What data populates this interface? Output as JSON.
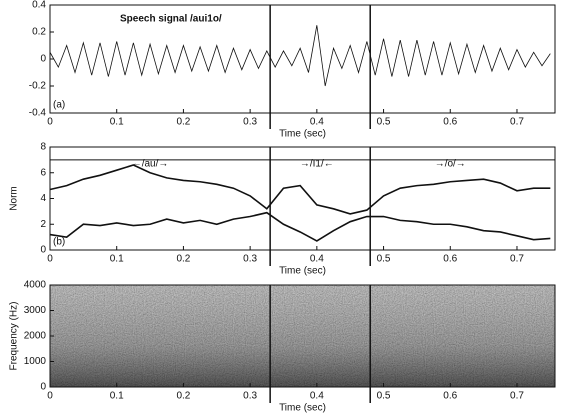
{
  "chart_data": [
    {
      "type": "line",
      "title": "Speech signal /aui1o/",
      "panel_label": "(a)",
      "x_label": "Time (sec)",
      "xlim": [
        0,
        0.757
      ],
      "xticks": [
        0,
        0.1,
        0.2,
        0.3,
        0.4,
        0.5,
        0.6,
        0.7
      ],
      "ylim": [
        -0.4,
        0.4
      ],
      "yticks": [
        -0.4,
        -0.2,
        0,
        0.2,
        0.4
      ],
      "boundaries": [
        0.33,
        0.48
      ],
      "x": [
        0,
        0.0125,
        0.025,
        0.0375,
        0.05,
        0.0625,
        0.075,
        0.0875,
        0.1,
        0.1125,
        0.125,
        0.1375,
        0.15,
        0.1625,
        0.175,
        0.1875,
        0.2,
        0.2125,
        0.225,
        0.2375,
        0.25,
        0.2625,
        0.275,
        0.2875,
        0.3,
        0.3125,
        0.325,
        0.3375,
        0.35,
        0.3625,
        0.375,
        0.3875,
        0.4,
        0.4125,
        0.425,
        0.4375,
        0.45,
        0.4625,
        0.475,
        0.4875,
        0.5,
        0.5125,
        0.525,
        0.5375,
        0.55,
        0.5625,
        0.575,
        0.5875,
        0.6,
        0.6125,
        0.625,
        0.6375,
        0.65,
        0.6625,
        0.675,
        0.6875,
        0.7,
        0.7125,
        0.725,
        0.7375,
        0.75
      ],
      "series": [
        {
          "color": "#111111",
          "values": [
            0.05,
            -0.06,
            0.1,
            -0.1,
            0.12,
            -0.12,
            0.12,
            -0.13,
            0.13,
            -0.12,
            0.12,
            -0.12,
            0.11,
            -0.11,
            0.1,
            -0.1,
            0.1,
            -0.09,
            0.09,
            -0.09,
            0.1,
            -0.1,
            0.08,
            -0.08,
            0.07,
            -0.07,
            0.06,
            -0.06,
            0.06,
            -0.05,
            0.08,
            -0.1,
            0.25,
            -0.2,
            0.08,
            -0.07,
            0.1,
            -0.1,
            0.13,
            -0.12,
            0.15,
            -0.13,
            0.14,
            -0.13,
            0.14,
            -0.12,
            0.13,
            -0.12,
            0.12,
            -0.11,
            0.11,
            -0.1,
            0.1,
            -0.09,
            0.08,
            -0.08,
            0.07,
            -0.06,
            0.05,
            -0.05,
            0.04
          ]
        }
      ]
    },
    {
      "type": "line",
      "panel_label": "(b)",
      "x_label": "Time (sec)",
      "y_label": "Norm",
      "xlim": [
        0,
        0.757
      ],
      "xticks": [
        0,
        0.1,
        0.2,
        0.3,
        0.4,
        0.5,
        0.6,
        0.7
      ],
      "ylim": [
        0,
        8
      ],
      "yticks": [
        0,
        2,
        4,
        6,
        8
      ],
      "boundaries": [
        0.33,
        0.48
      ],
      "annotations": [
        "←/au/→",
        "→/I1/←",
        "→/o/→"
      ],
      "x": [
        0,
        0.025,
        0.05,
        0.075,
        0.1,
        0.125,
        0.15,
        0.175,
        0.2,
        0.225,
        0.25,
        0.275,
        0.3,
        0.325,
        0.35,
        0.375,
        0.4,
        0.425,
        0.45,
        0.475,
        0.5,
        0.525,
        0.55,
        0.575,
        0.6,
        0.625,
        0.65,
        0.675,
        0.7,
        0.725,
        0.75
      ],
      "series": [
        {
          "color": "#111111",
          "values": [
            4.7,
            5.0,
            5.5,
            5.8,
            6.2,
            6.6,
            6.0,
            5.6,
            5.4,
            5.3,
            5.1,
            4.8,
            4.2,
            3.2,
            4.8,
            5.0,
            3.5,
            3.2,
            2.8,
            3.1,
            4.2,
            4.8,
            5.0,
            5.1,
            5.3,
            5.4,
            5.5,
            5.2,
            4.6,
            4.8,
            4.8
          ]
        },
        {
          "color": "#111111",
          "values": [
            1.2,
            1.0,
            2.0,
            1.9,
            2.1,
            1.9,
            2.0,
            2.4,
            2.1,
            2.3,
            2.0,
            2.4,
            2.6,
            2.9,
            2.0,
            1.4,
            0.7,
            1.5,
            2.2,
            2.6,
            2.6,
            2.3,
            2.2,
            2.0,
            2.0,
            1.8,
            1.5,
            1.4,
            1.1,
            0.8,
            0.9
          ]
        }
      ]
    },
    {
      "type": "spectrogram",
      "x_label": "Time (sec)",
      "y_label": "Frequency (Hz)",
      "xlim": [
        0,
        0.757
      ],
      "xticks": [
        0,
        0.1,
        0.2,
        0.3,
        0.4,
        0.5,
        0.6,
        0.7
      ],
      "ylim": [
        0,
        4000
      ],
      "yticks": [
        0,
        1000,
        2000,
        3000,
        4000
      ],
      "boundaries": [
        0.33,
        0.48
      ]
    }
  ]
}
